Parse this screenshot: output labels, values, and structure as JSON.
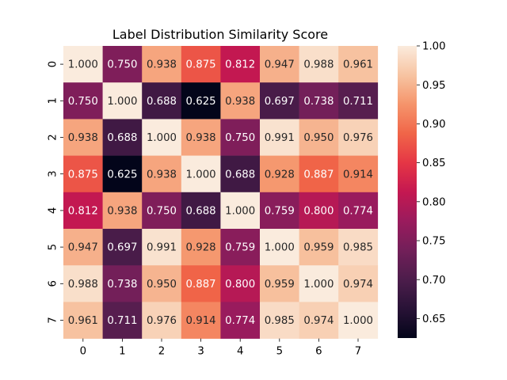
{
  "chart_data": {
    "type": "heatmap",
    "title": "Label Distribution Similarity Score",
    "xlabel": "",
    "ylabel": "",
    "x_categories": [
      "0",
      "1",
      "2",
      "3",
      "4",
      "5",
      "6",
      "7"
    ],
    "y_categories": [
      "0",
      "1",
      "2",
      "3",
      "4",
      "5",
      "6",
      "7"
    ],
    "values": [
      [
        1.0,
        0.75,
        0.938,
        0.875,
        0.812,
        0.947,
        0.988,
        0.961
      ],
      [
        0.75,
        1.0,
        0.688,
        0.625,
        0.938,
        0.697,
        0.738,
        0.711
      ],
      [
        0.938,
        0.688,
        1.0,
        0.938,
        0.75,
        0.991,
        0.95,
        0.976
      ],
      [
        0.875,
        0.625,
        0.938,
        1.0,
        0.688,
        0.928,
        0.887,
        0.914
      ],
      [
        0.812,
        0.938,
        0.75,
        0.688,
        1.0,
        0.759,
        0.8,
        0.774
      ],
      [
        0.947,
        0.697,
        0.991,
        0.928,
        0.759,
        1.0,
        0.959,
        0.985
      ],
      [
        0.988,
        0.738,
        0.95,
        0.887,
        0.8,
        0.959,
        1.0,
        0.974
      ],
      [
        0.961,
        0.711,
        0.976,
        0.914,
        0.774,
        0.985,
        0.974,
        1.0
      ]
    ],
    "value_format": "0.000",
    "annotated": true,
    "colormap": "rocket",
    "color_range": [
      0.625,
      1.0
    ],
    "colorbar": {
      "position": "right",
      "ticks": [
        "0.65",
        "0.70",
        "0.75",
        "0.80",
        "0.85",
        "0.90",
        "0.95",
        "1.00"
      ]
    },
    "grid": false
  }
}
